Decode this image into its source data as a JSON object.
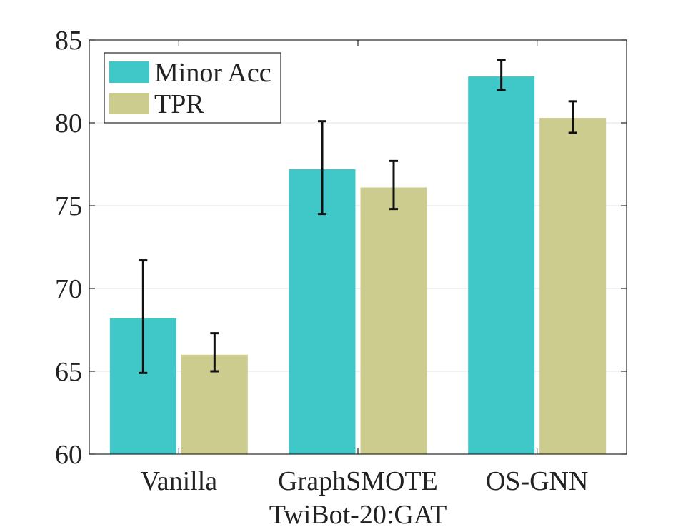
{
  "chart_data": {
    "type": "bar",
    "title": "",
    "xlabel": "TwiBot-20:GAT",
    "ylabel": "",
    "categories": [
      "Vanilla",
      "GraphSMOTE",
      "OS-GNN"
    ],
    "ylim": [
      60,
      85
    ],
    "yticks": [
      60,
      65,
      70,
      75,
      80,
      85
    ],
    "grid": true,
    "legend_position": "top-left",
    "series": [
      {
        "name": "Minor Acc",
        "color": "#40C8C8",
        "values": [
          68.2,
          77.2,
          82.8
        ],
        "err_low": [
          64.9,
          74.5,
          82.0
        ],
        "err_high": [
          71.7,
          80.1,
          83.8
        ]
      },
      {
        "name": "TPR",
        "color": "#CCCC8F",
        "values": [
          66.0,
          76.1,
          80.3
        ],
        "err_low": [
          65.0,
          74.8,
          79.4
        ],
        "err_high": [
          67.3,
          77.7,
          81.3
        ]
      }
    ]
  }
}
